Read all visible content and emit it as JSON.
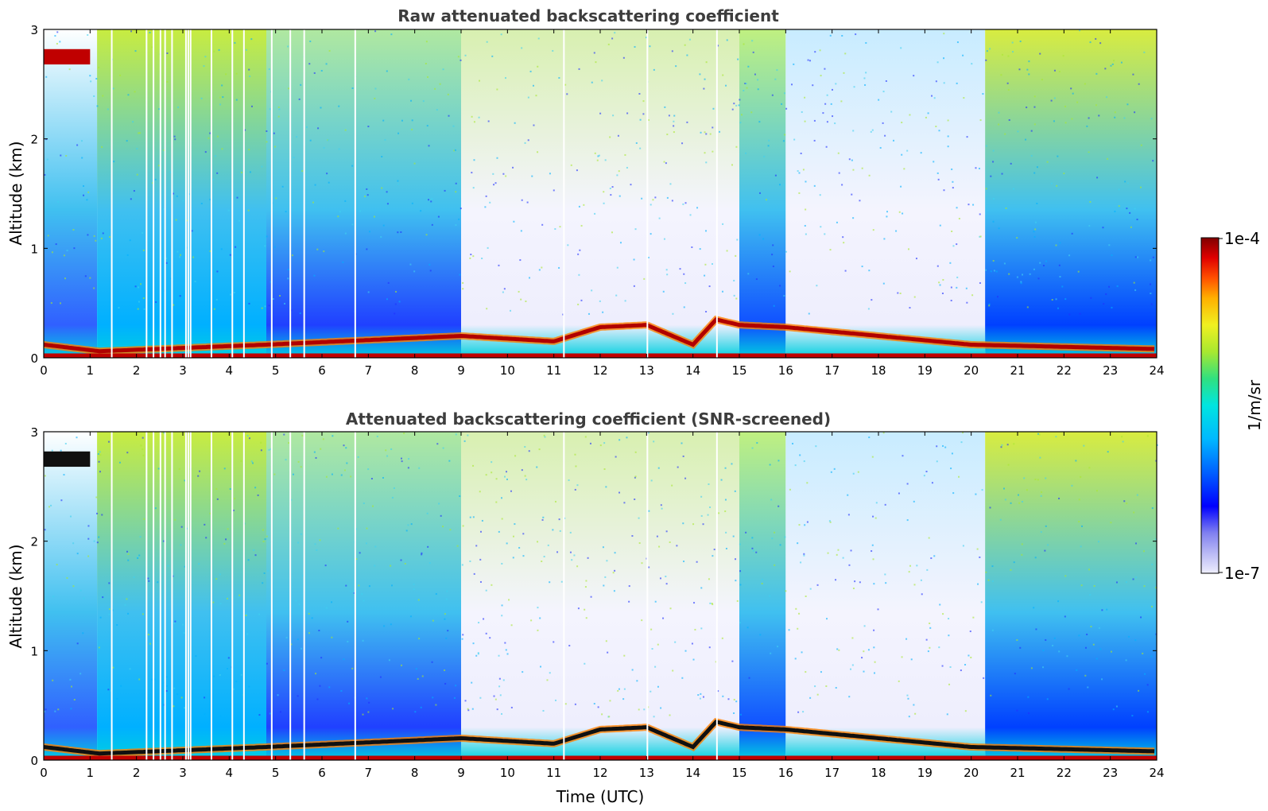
{
  "chart_data": [
    {
      "type": "heatmap",
      "title": "Raw attenuated backscattering coefficient",
      "xlabel": "",
      "ylabel": "Altitude (km)",
      "xlim": [
        0,
        24
      ],
      "ylim": [
        0,
        3
      ],
      "x_ticks": [
        "0",
        "1",
        "2",
        "3",
        "4",
        "5",
        "6",
        "7",
        "8",
        "9",
        "10",
        "11",
        "12",
        "13",
        "14",
        "15",
        "16",
        "17",
        "18",
        "19",
        "20",
        "21",
        "22",
        "23",
        "24"
      ],
      "y_ticks": [
        "0",
        "1",
        "2",
        "3"
      ],
      "z_scale": "log",
      "z_range": [
        1e-07,
        0.0001
      ],
      "colormap": "jet",
      "layer_height_km": [
        {
          "x": 0,
          "y": 0.12
        },
        {
          "x": 1.2,
          "y": 0.06
        },
        {
          "x": 4.8,
          "y": 0.12
        },
        {
          "x": 9,
          "y": 0.2
        },
        {
          "x": 11,
          "y": 0.15
        },
        {
          "x": 12,
          "y": 0.28
        },
        {
          "x": 13,
          "y": 0.3
        },
        {
          "x": 14,
          "y": 0.12
        },
        {
          "x": 14.5,
          "y": 0.35
        },
        {
          "x": 15,
          "y": 0.3
        },
        {
          "x": 16,
          "y": 0.28
        },
        {
          "x": 20,
          "y": 0.12
        },
        {
          "x": 24,
          "y": 0.08
        }
      ],
      "elevated_layer": {
        "x_range": [
          0,
          1.0
        ],
        "y_km": 2.75
      }
    },
    {
      "type": "heatmap",
      "title": "Attenuated backscattering coefficient (SNR-screened)",
      "xlabel": "Time (UTC)",
      "ylabel": "Altitude (km)",
      "xlim": [
        0,
        24
      ],
      "ylim": [
        0,
        3
      ],
      "x_ticks": [
        "0",
        "1",
        "2",
        "3",
        "4",
        "5",
        "6",
        "7",
        "8",
        "9",
        "10",
        "11",
        "12",
        "13",
        "14",
        "15",
        "16",
        "17",
        "18",
        "19",
        "20",
        "21",
        "22",
        "23",
        "24"
      ],
      "y_ticks": [
        "0",
        "1",
        "2",
        "3"
      ],
      "z_scale": "log",
      "z_range": [
        1e-07,
        0.0001
      ],
      "colormap": "jet",
      "layer_height_km": [
        {
          "x": 0,
          "y": 0.12
        },
        {
          "x": 1.2,
          "y": 0.06
        },
        {
          "x": 4.8,
          "y": 0.12
        },
        {
          "x": 9,
          "y": 0.2
        },
        {
          "x": 11,
          "y": 0.15
        },
        {
          "x": 12,
          "y": 0.28
        },
        {
          "x": 13,
          "y": 0.3
        },
        {
          "x": 14,
          "y": 0.12
        },
        {
          "x": 14.5,
          "y": 0.35
        },
        {
          "x": 15,
          "y": 0.3
        },
        {
          "x": 16,
          "y": 0.28
        },
        {
          "x": 20,
          "y": 0.12
        },
        {
          "x": 24,
          "y": 0.08
        }
      ],
      "elevated_layer": {
        "x_range": [
          0,
          1.0
        ],
        "y_km": 2.75
      }
    }
  ],
  "colorbar": {
    "max_label": "1e-4",
    "min_label": "1e-7",
    "unit_label": "1/m/sr",
    "colors": [
      "#eeeefd",
      "#b9b9f5",
      "#8080f0",
      "#0000ff",
      "#0055ff",
      "#00a8ff",
      "#00e5ee",
      "#00e6b0",
      "#4fe060",
      "#a8e830",
      "#f0f020",
      "#ffb000",
      "#ff6000",
      "#ff1a00",
      "#d00000",
      "#800000"
    ]
  }
}
